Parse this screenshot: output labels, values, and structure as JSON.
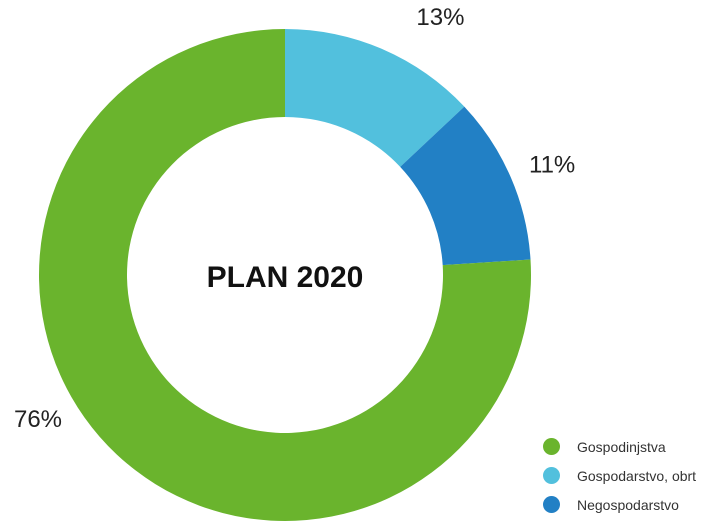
{
  "chart_data": {
    "type": "pie",
    "title": "PLAN 2020",
    "categories": [
      "Gospodinjstva",
      "Gospodarstvo, obrt",
      "Negospodarstvo"
    ],
    "values": [
      76,
      13,
      11
    ],
    "value_labels": [
      "76%",
      "13%",
      "11%"
    ],
    "colors": [
      "#6ab42d",
      "#52c0dd",
      "#2280c5"
    ],
    "donut": true,
    "legend_position": "bottom-right"
  }
}
